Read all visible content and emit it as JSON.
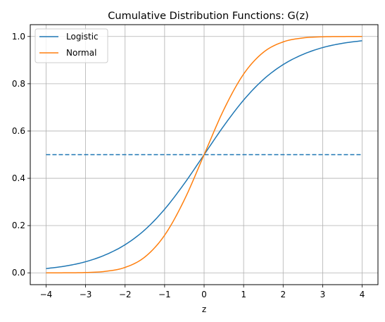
{
  "chart_data": {
    "type": "line",
    "title": "Cumulative Distribution Functions: G(z)",
    "xlabel": "z",
    "ylabel": "",
    "xlim": [
      -4.4,
      4.4
    ],
    "ylim": [
      -0.05,
      1.05
    ],
    "x_ticks": [
      -4,
      -3,
      -2,
      -1,
      0,
      1,
      2,
      3,
      4
    ],
    "y_ticks": [
      0.0,
      0.2,
      0.4,
      0.6,
      0.8,
      1.0
    ],
    "x_tick_labels": [
      "−4",
      "−3",
      "−2",
      "−1",
      "0",
      "1",
      "2",
      "3",
      "4"
    ],
    "y_tick_labels": [
      "0.0",
      "0.2",
      "0.4",
      "0.6",
      "0.8",
      "1.0"
    ],
    "grid": true,
    "legend_position": "top-left",
    "x": [
      -4.0,
      -3.5,
      -3.0,
      -2.5,
      -2.0,
      -1.5,
      -1.0,
      -0.5,
      0.0,
      0.5,
      1.0,
      1.5,
      2.0,
      2.5,
      3.0,
      3.5,
      4.0
    ],
    "series": [
      {
        "name": "Logistic",
        "color": "#1f77b4",
        "style": "solid",
        "values": [
          0.018,
          0.029,
          0.047,
          0.076,
          0.119,
          0.182,
          0.269,
          0.378,
          0.5,
          0.622,
          0.731,
          0.818,
          0.881,
          0.924,
          0.953,
          0.971,
          0.982
        ]
      },
      {
        "name": "Normal",
        "color": "#ff7f0e",
        "style": "solid",
        "values": [
          0.0,
          0.0002,
          0.0013,
          0.0062,
          0.023,
          0.067,
          0.159,
          0.309,
          0.5,
          0.691,
          0.841,
          0.933,
          0.977,
          0.9938,
          0.9987,
          0.9998,
          1.0
        ]
      },
      {
        "color": "#1f77b4",
        "style": "dashed",
        "x": [
          -4.0,
          4.0
        ],
        "values": [
          0.5,
          0.5
        ]
      }
    ]
  }
}
